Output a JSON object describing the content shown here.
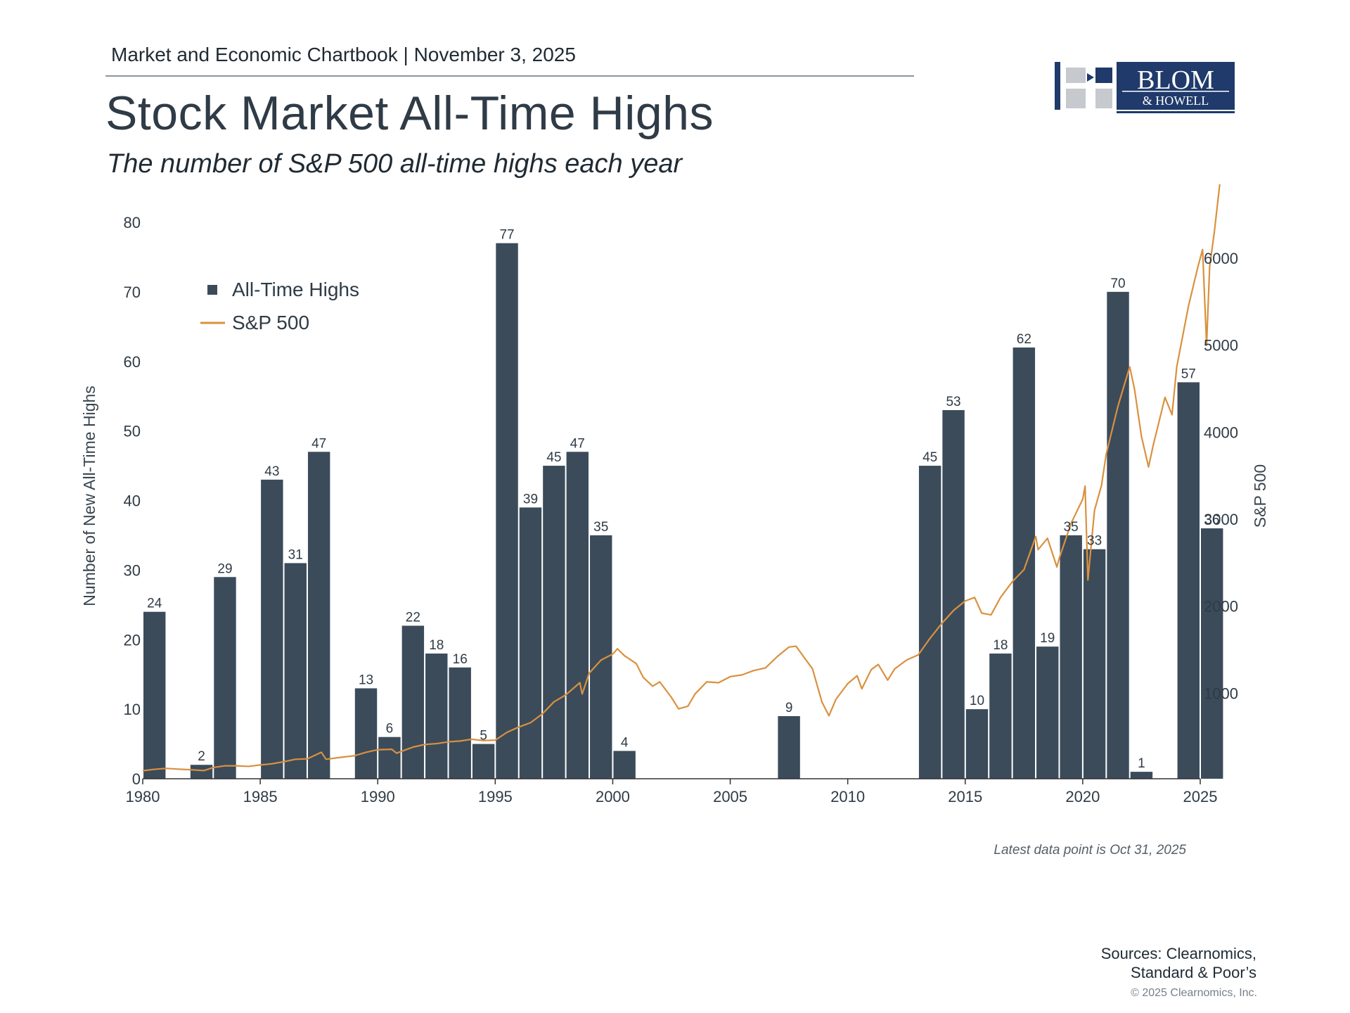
{
  "header": {
    "chartbook": "Market and Economic Chartbook | November 3, 2025",
    "title": "Stock Market All-Time Highs",
    "subtitle": "The number of S&P 500 all-time highs each year"
  },
  "logo": {
    "line1": "BLOM",
    "line2": "& HOWELL"
  },
  "footer": {
    "note": "Latest data point is Oct 31, 2025",
    "sources_line1": "Sources: Clearnomics,",
    "sources_line2": "Standard & Poor’s",
    "copyright": "© 2025 Clearnomics, Inc."
  },
  "colors": {
    "bar": "#3b4b5a",
    "line": "#d9913f",
    "axis": "#333333",
    "text": "#2f3b46"
  },
  "chart_data": {
    "type": "bar",
    "title": "Stock Market All-Time Highs",
    "subtitle": "The number of S&P 500 all-time highs each year",
    "ylabel": "Number of New All-Time Highs",
    "y2label": "S&P 500",
    "ylim": [
      0,
      80
    ],
    "y2lim": [
      0,
      6000
    ],
    "yticks": [
      0,
      10,
      20,
      30,
      40,
      50,
      60,
      70,
      80
    ],
    "y2ticks": [
      1000,
      2000,
      3000,
      4000,
      5000,
      6000
    ],
    "xticks": [
      1980,
      1985,
      1990,
      1995,
      2000,
      2005,
      2010,
      2015,
      2020,
      2025
    ],
    "legend": {
      "position": "top-left",
      "items": [
        "All-Time Highs",
        "S&P 500"
      ]
    },
    "grid": false,
    "series": [
      {
        "name": "All-Time Highs",
        "type": "bar",
        "x": [
          1980,
          1981,
          1982,
          1983,
          1984,
          1985,
          1986,
          1987,
          1988,
          1989,
          1990,
          1991,
          1992,
          1993,
          1994,
          1995,
          1996,
          1997,
          1998,
          1999,
          2000,
          2001,
          2002,
          2003,
          2004,
          2005,
          2006,
          2007,
          2008,
          2009,
          2010,
          2011,
          2012,
          2013,
          2014,
          2015,
          2016,
          2017,
          2018,
          2019,
          2020,
          2021,
          2022,
          2023,
          2024,
          2025
        ],
        "values": [
          24,
          0,
          2,
          29,
          0,
          43,
          31,
          47,
          0,
          13,
          6,
          22,
          18,
          16,
          5,
          77,
          39,
          45,
          47,
          35,
          4,
          0,
          0,
          0,
          0,
          0,
          0,
          9,
          0,
          0,
          0,
          0,
          0,
          45,
          53,
          10,
          18,
          62,
          19,
          35,
          33,
          70,
          1,
          0,
          57,
          36
        ]
      },
      {
        "name": "S&P 500",
        "type": "line",
        "axis": "y2",
        "x": [
          1980.0,
          1980.5,
          1981.0,
          1981.5,
          1982.0,
          1982.6,
          1983.0,
          1983.5,
          1984.0,
          1984.5,
          1985.0,
          1985.5,
          1986.0,
          1986.5,
          1987.0,
          1987.6,
          1987.8,
          1988.5,
          1989.0,
          1989.5,
          1990.0,
          1990.6,
          1990.8,
          1991.5,
          1992.0,
          1992.5,
          1993.0,
          1993.5,
          1994.0,
          1994.5,
          1995.0,
          1995.5,
          1996.0,
          1996.5,
          1997.0,
          1997.5,
          1998.0,
          1998.6,
          1998.7,
          1999.0,
          1999.5,
          2000.0,
          2000.2,
          2000.5,
          2001.0,
          2001.3,
          2001.7,
          2002.0,
          2002.5,
          2002.8,
          2003.2,
          2003.5,
          2004.0,
          2004.5,
          2005.0,
          2005.5,
          2006.0,
          2006.5,
          2007.0,
          2007.5,
          2007.8,
          2008.2,
          2008.5,
          2008.9,
          2009.2,
          2009.5,
          2010.0,
          2010.4,
          2010.6,
          2011.0,
          2011.3,
          2011.7,
          2012.0,
          2012.5,
          2013.0,
          2013.5,
          2014.0,
          2014.5,
          2015.0,
          2015.4,
          2015.7,
          2016.1,
          2016.5,
          2017.0,
          2017.5,
          2018.0,
          2018.1,
          2018.5,
          2018.9,
          2019.0,
          2019.5,
          2020.0,
          2020.1,
          2020.22,
          2020.5,
          2020.8,
          2021.0,
          2021.5,
          2022.0,
          2022.2,
          2022.5,
          2022.8,
          2023.0,
          2023.5,
          2023.8,
          2024.0,
          2024.5,
          2024.9,
          2025.1,
          2025.27,
          2025.4,
          2025.6,
          2025.83
        ],
        "values": [
          108,
          125,
          135,
          127,
          120,
          110,
          145,
          165,
          165,
          158,
          175,
          188,
          212,
          240,
          245,
          320,
          240,
          265,
          280,
          320,
          350,
          355,
          310,
          380,
          410,
          420,
          440,
          450,
          470,
          455,
          460,
          550,
          610,
          660,
          760,
          900,
          980,
          1120,
          990,
          1230,
          1380,
          1450,
          1510,
          1430,
          1340,
          1180,
          1080,
          1130,
          950,
          820,
          850,
          990,
          1130,
          1120,
          1190,
          1210,
          1260,
          1290,
          1420,
          1530,
          1540,
          1390,
          1280,
          900,
          740,
          930,
          1110,
          1200,
          1050,
          1270,
          1330,
          1150,
          1280,
          1380,
          1440,
          1630,
          1800,
          1950,
          2060,
          2100,
          1920,
          1900,
          2100,
          2280,
          2420,
          2800,
          2650,
          2780,
          2450,
          2550,
          2950,
          3230,
          3380,
          2300,
          3100,
          3390,
          3750,
          4300,
          4750,
          4500,
          3950,
          3600,
          3850,
          4400,
          4200,
          4750,
          5450,
          5900,
          6100,
          5000,
          5900,
          6300,
          6850
        ]
      }
    ]
  }
}
